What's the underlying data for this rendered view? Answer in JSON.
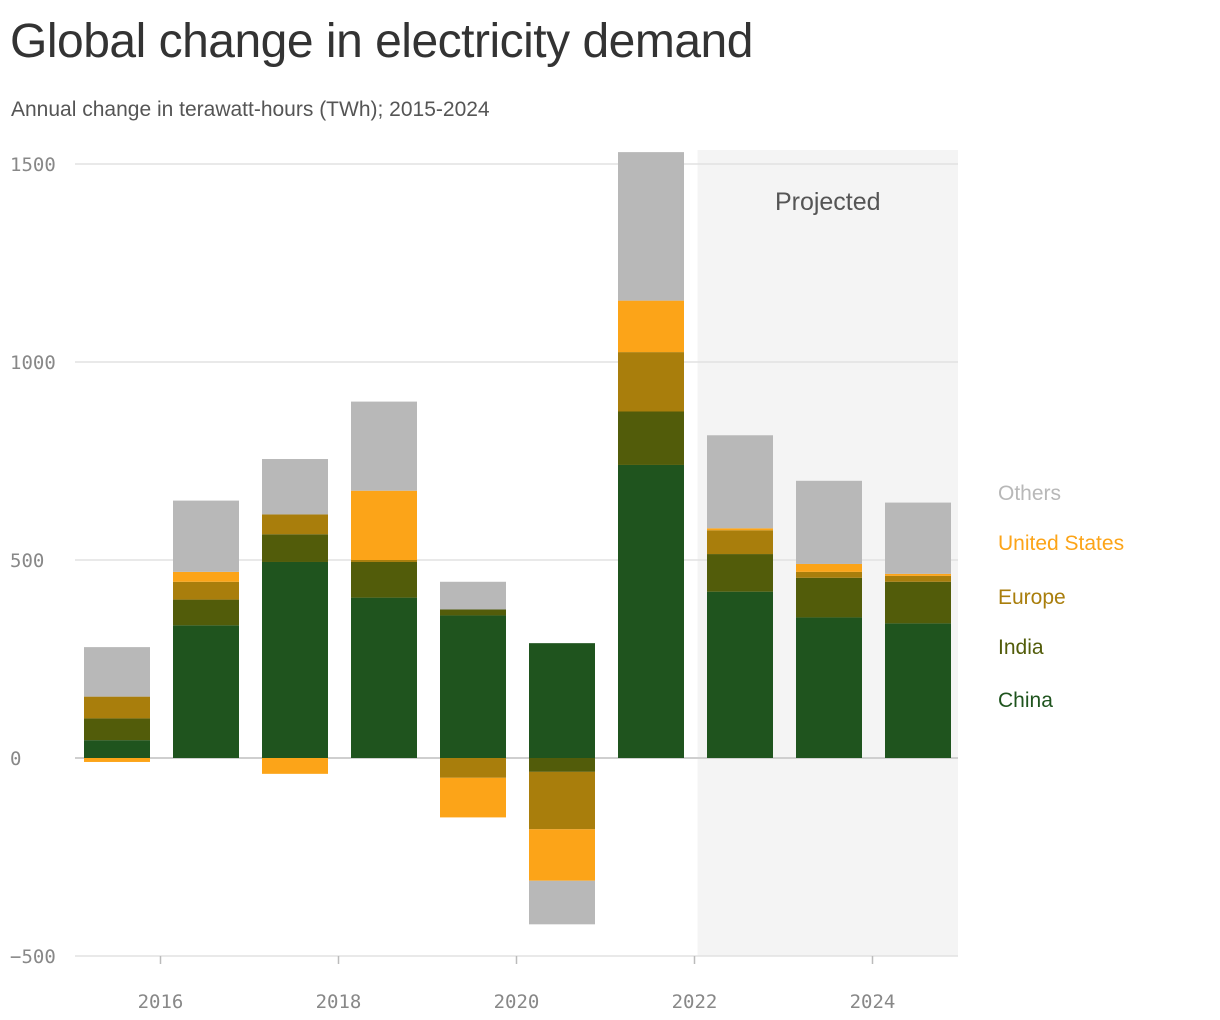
{
  "title": "Global change in electricity demand",
  "subtitle": "Annual change in terawatt-hours (TWh); 2015-2024",
  "chart_data": {
    "type": "bar",
    "stacked": true,
    "title": "Global change in electricity demand",
    "subtitle": "Annual change in terawatt-hours (TWh); 2015-2024",
    "xlabel": "",
    "ylabel": "",
    "ylim": [
      -500,
      1500
    ],
    "yticks": [
      1500,
      1000,
      500,
      0,
      -500
    ],
    "xticks": [
      2016,
      2018,
      2020,
      2022,
      2024
    ],
    "grid": true,
    "legend_placement": "right",
    "categories": [
      2015,
      2016,
      2017,
      2018,
      2019,
      2020,
      2021,
      2022,
      2023,
      2024
    ],
    "series": [
      {
        "name": "China",
        "color": "#1f541e",
        "values": [
          45,
          335,
          495,
          405,
          360,
          290,
          740,
          420,
          355,
          340
        ]
      },
      {
        "name": "India",
        "color": "#525c0a",
        "values": [
          55,
          65,
          70,
          90,
          15,
          -35,
          135,
          95,
          100,
          105
        ]
      },
      {
        "name": "Europe",
        "color": "#a97e0c",
        "values": [
          55,
          45,
          50,
          5,
          -50,
          -145,
          150,
          60,
          15,
          15
        ]
      },
      {
        "name": "United States",
        "color": "#fca418",
        "values": [
          -10,
          25,
          -40,
          175,
          -100,
          -130,
          130,
          5,
          20,
          5
        ]
      },
      {
        "name": "Others",
        "color": "#b8b8b8",
        "values": [
          125,
          180,
          140,
          225,
          70,
          -110,
          375,
          235,
          210,
          180
        ]
      }
    ],
    "annotations": [
      {
        "label": "Projected",
        "from": 2022,
        "to": 2024
      }
    ]
  },
  "legend": [
    "Others",
    "United States",
    "Europe",
    "India",
    "China"
  ]
}
